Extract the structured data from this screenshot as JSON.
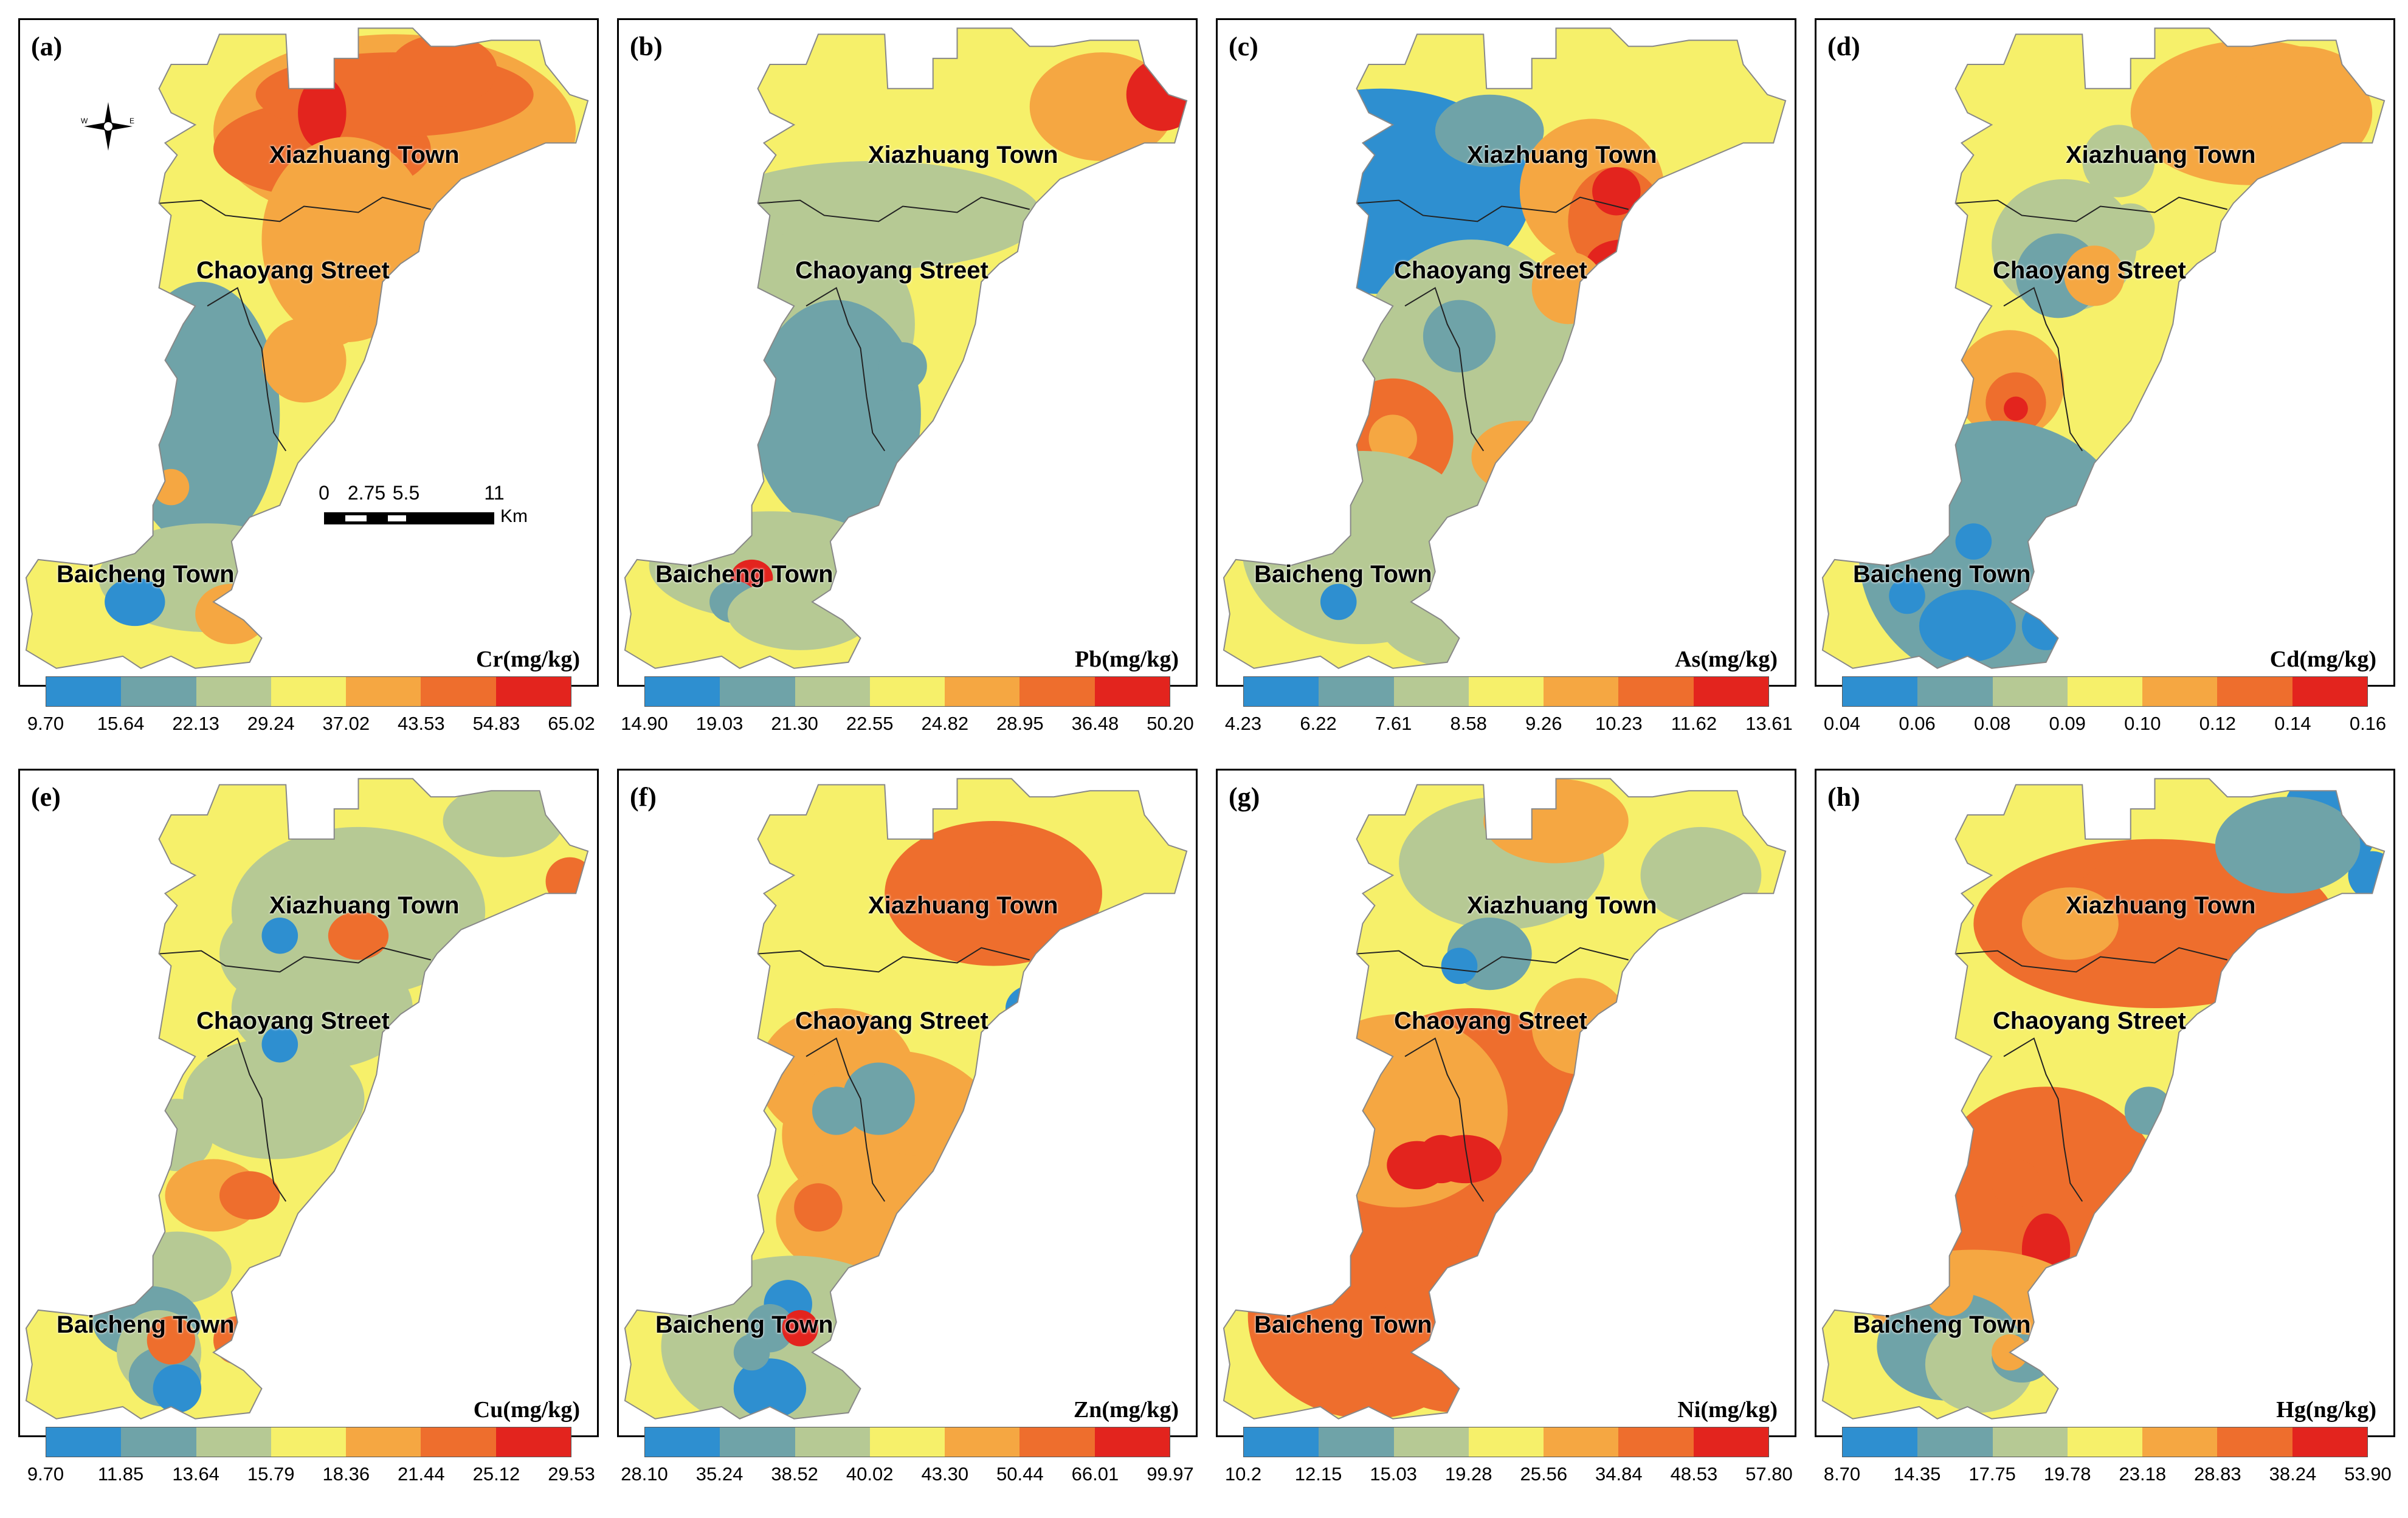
{
  "colors": [
    "#2e8fd0",
    "#6fa3a8",
    "#b6c994",
    "#f6f06a",
    "#f5a742",
    "#ee6e2d",
    "#e3241e"
  ],
  "towns": [
    "Xiazhuang Town",
    "Chaoyang Street",
    "Baicheng Town"
  ],
  "scale_bar": {
    "ticks": [
      "0",
      "2.75",
      "5.5",
      "11"
    ],
    "unit": "Km"
  },
  "compass": {
    "west": "W",
    "east": "E"
  },
  "panels": [
    {
      "label": "(a)",
      "unit": "Cr(mg/kg)",
      "breaks": [
        "9.70",
        "15.64",
        "22.13",
        "29.24",
        "37.02",
        "43.53",
        "54.83",
        "65.02"
      ]
    },
    {
      "label": "(b)",
      "unit": "Pb(mg/kg)",
      "breaks": [
        "14.90",
        "19.03",
        "21.30",
        "22.55",
        "24.82",
        "28.95",
        "36.48",
        "50.20"
      ]
    },
    {
      "label": "(c)",
      "unit": "As(mg/kg)",
      "breaks": [
        "4.23",
        "6.22",
        "7.61",
        "8.58",
        "9.26",
        "10.23",
        "11.62",
        "13.61"
      ]
    },
    {
      "label": "(d)",
      "unit": "Cd(mg/kg)",
      "breaks": [
        "0.04",
        "0.06",
        "0.08",
        "0.09",
        "0.10",
        "0.12",
        "0.14",
        "0.16"
      ]
    },
    {
      "label": "(e)",
      "unit": "Cu(mg/kg)",
      "breaks": [
        "9.70",
        "11.85",
        "13.64",
        "15.79",
        "18.36",
        "21.44",
        "25.12",
        "29.53"
      ]
    },
    {
      "label": "(f)",
      "unit": "Zn(mg/kg)",
      "breaks": [
        "28.10",
        "35.24",
        "38.52",
        "40.02",
        "43.30",
        "50.44",
        "66.01",
        "99.97"
      ]
    },
    {
      "label": "(g)",
      "unit": "Ni(mg/kg)",
      "breaks": [
        "10.2",
        "12.15",
        "15.03",
        "19.28",
        "25.56",
        "34.84",
        "48.53",
        "57.80"
      ]
    },
    {
      "label": "(h)",
      "unit": "Hg(ng/kg)",
      "breaks": [
        "8.70",
        "14.35",
        "17.75",
        "19.78",
        "23.18",
        "28.83",
        "38.24",
        "53.90"
      ]
    }
  ]
}
